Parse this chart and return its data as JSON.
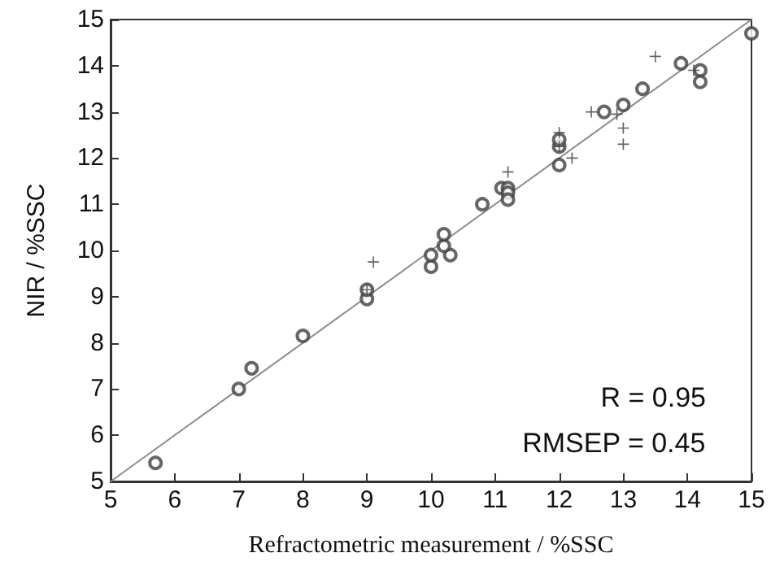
{
  "chart_data": {
    "type": "scatter",
    "xlabel": "Refractometric measurement / %SSC",
    "ylabel": "NIR / %SSC",
    "xlim": [
      5,
      15
    ],
    "ylim": [
      5,
      15
    ],
    "xticks": [
      5,
      6,
      7,
      8,
      9,
      10,
      11,
      12,
      13,
      14,
      15
    ],
    "yticks": [
      5,
      6,
      7,
      8,
      9,
      10,
      11,
      12,
      13,
      14,
      15
    ],
    "grid": false,
    "annotations": [
      "R = 0.95",
      "RMSEP = 0.45"
    ],
    "series": [
      {
        "marker": "circle",
        "color": "#404040",
        "x": [
          5.7,
          7.0,
          7.2,
          8.0,
          9.0,
          9.0,
          10.0,
          10.0,
          10.3,
          10.2,
          10.2,
          10.8,
          11.1,
          11.2,
          11.2,
          11.2,
          12.0,
          12.0,
          12.0,
          12.7,
          13.0,
          13.3,
          13.9,
          14.2,
          14.2,
          15.0
        ],
        "values": [
          5.4,
          7.0,
          7.45,
          8.15,
          8.95,
          9.15,
          9.65,
          9.9,
          9.9,
          10.1,
          10.35,
          11.0,
          11.35,
          11.35,
          11.25,
          11.1,
          11.85,
          12.25,
          12.4,
          13.0,
          13.15,
          13.5,
          14.05,
          13.9,
          13.65,
          14.7
        ]
      },
      {
        "marker": "cross",
        "color": "#404040",
        "x": [
          9.0,
          9.1,
          11.2,
          12.0,
          12.0,
          12.2,
          12.5,
          12.9,
          13.0,
          13.0,
          13.5,
          14.1
        ],
        "values": [
          9.15,
          9.75,
          11.7,
          12.55,
          12.25,
          12.0,
          13.0,
          12.95,
          12.65,
          12.3,
          14.2,
          13.9
        ]
      },
      {
        "type": "line",
        "marker": "none",
        "line_style": "solid",
        "color": "#8c8c8c",
        "x": [
          5,
          15
        ],
        "values": [
          5,
          15
        ]
      }
    ]
  }
}
